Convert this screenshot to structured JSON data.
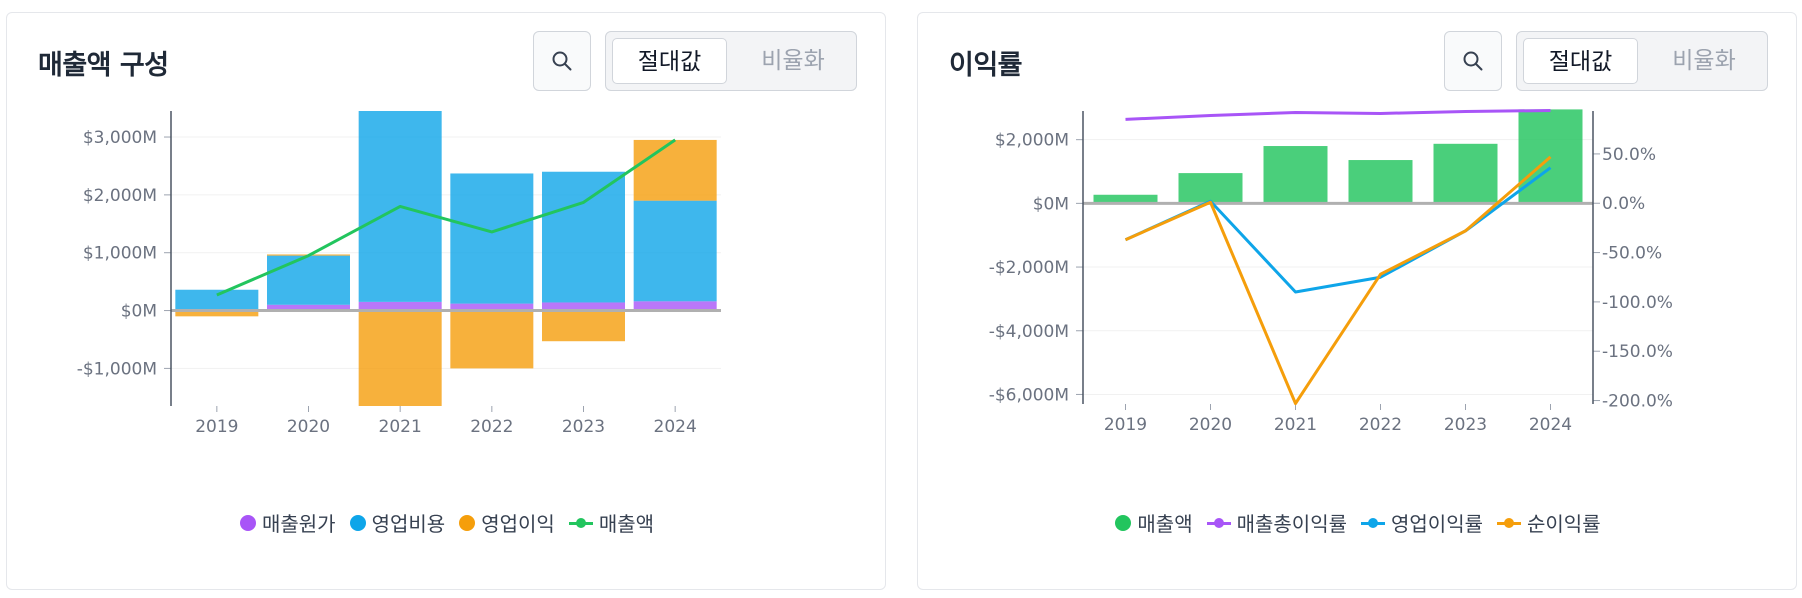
{
  "panels": [
    {
      "title": "매출액 구성",
      "toggle": {
        "absolute": "절대값",
        "ratio": "비율화"
      },
      "search_icon": "search-icon",
      "legend": [
        {
          "label": "매출원가",
          "kind": "dot",
          "color": "#a855f7"
        },
        {
          "label": "영업비용",
          "kind": "dot",
          "color": "#0ea5e9"
        },
        {
          "label": "영업이익",
          "kind": "dot",
          "color": "#f59e0b"
        },
        {
          "label": "매출액",
          "kind": "line",
          "color": "#22c55e"
        }
      ]
    },
    {
      "title": "이익률",
      "toggle": {
        "absolute": "절대값",
        "ratio": "비율화"
      },
      "search_icon": "search-icon",
      "legend": [
        {
          "label": "매출액",
          "kind": "dot",
          "color": "#22c55e"
        },
        {
          "label": "매출총이익률",
          "kind": "line",
          "color": "#a855f7"
        },
        {
          "label": "영업이익률",
          "kind": "line",
          "color": "#0ea5e9"
        },
        {
          "label": "순이익률",
          "kind": "line",
          "color": "#f59e0b"
        }
      ]
    }
  ],
  "chart_data": [
    {
      "type": "bar",
      "stacked": true,
      "categories": [
        "2019",
        "2020",
        "2021",
        "2022",
        "2023",
        "2024"
      ],
      "ylim": [
        -1650,
        3450
      ],
      "yticks": [
        -1000,
        0,
        1000,
        2000,
        3000
      ],
      "ytick_labels": [
        "-$1,000M",
        "$0M",
        "$1,000M",
        "$2,000M",
        "$3,000M"
      ],
      "series": [
        {
          "name": "매출원가",
          "type": "bar",
          "color": "#a855f7",
          "values": [
            20,
            100,
            150,
            120,
            140,
            160
          ]
        },
        {
          "name": "영업비용",
          "type": "bar",
          "color": "#0ea5e9",
          "values": [
            340,
            850,
            3300,
            2250,
            2260,
            1740
          ]
        },
        {
          "name": "영업이익",
          "type": "bar",
          "color": "#f59e0b",
          "values": [
            -100,
            20,
            -1650,
            -1000,
            -530,
            1050
          ]
        },
        {
          "name": "매출액",
          "type": "line",
          "color": "#22c55e",
          "values": [
            270,
            950,
            1800,
            1360,
            1870,
            2950
          ]
        }
      ]
    },
    {
      "type": "bar",
      "dual_axis": true,
      "categories": [
        "2019",
        "2020",
        "2021",
        "2022",
        "2023",
        "2024"
      ],
      "ylim": [
        -6300,
        2900
      ],
      "yticks": [
        -6000,
        -4000,
        -2000,
        0,
        2000
      ],
      "ytick_labels": [
        "-$6,000M",
        "-$4,000M",
        "-$2,000M",
        "$0M",
        "$2,000M"
      ],
      "y2lim": [
        -203.5,
        93.5
      ],
      "y2ticks": [
        -200,
        -150,
        -100,
        -50,
        0,
        50
      ],
      "y2tick_labels": [
        "-200.0%",
        "-150.0%",
        "-100.0%",
        "-50.0%",
        "0.0%",
        "50.0%"
      ],
      "series": [
        {
          "name": "매출액",
          "type": "bar",
          "axis": "left",
          "color": "#22c55e",
          "values": [
            270,
            950,
            1800,
            1360,
            1870,
            2950
          ]
        },
        {
          "name": "매출총이익률",
          "type": "line",
          "axis": "right",
          "color": "#a855f7",
          "values": [
            85,
            89,
            92,
            91,
            93,
            94
          ]
        },
        {
          "name": "영업이익률",
          "type": "line",
          "axis": "right",
          "color": "#0ea5e9",
          "values": [
            -37,
            2,
            -90,
            -75,
            -28,
            36
          ]
        },
        {
          "name": "순이익률",
          "type": "line",
          "axis": "right",
          "color": "#f59e0b",
          "values": [
            -37,
            1,
            -203,
            -72,
            -28,
            47
          ]
        }
      ]
    }
  ]
}
